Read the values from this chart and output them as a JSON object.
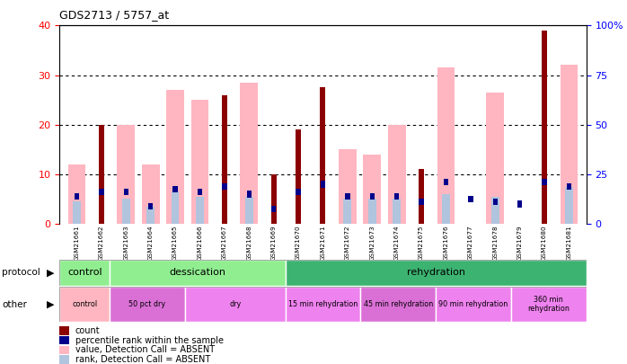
{
  "title": "GDS2713 / 5757_at",
  "samples": [
    "GSM21661",
    "GSM21662",
    "GSM21663",
    "GSM21664",
    "GSM21665",
    "GSM21666",
    "GSM21667",
    "GSM21668",
    "GSM21669",
    "GSM21670",
    "GSM21671",
    "GSM21672",
    "GSM21673",
    "GSM21674",
    "GSM21675",
    "GSM21676",
    "GSM21677",
    "GSM21678",
    "GSM21679",
    "GSM21680",
    "GSM21681"
  ],
  "count_values": [
    0,
    20,
    0,
    0,
    0,
    0,
    26,
    0,
    10,
    19,
    27.5,
    0,
    0,
    0,
    11,
    0,
    0,
    0,
    0,
    39,
    0
  ],
  "rank_values": [
    5.5,
    6.5,
    6.5,
    3.5,
    7.0,
    6.5,
    7.5,
    6.0,
    3.0,
    6.5,
    8.0,
    5.5,
    5.5,
    5.5,
    4.5,
    8.5,
    5.0,
    4.5,
    4.0,
    8.5,
    7.5
  ],
  "value_absent": [
    12,
    0,
    20,
    12,
    27,
    25,
    0,
    28.5,
    0,
    0,
    0,
    15,
    14,
    20,
    0,
    31.5,
    0,
    26.5,
    0,
    0,
    32
  ],
  "rank_absent": [
    4.5,
    0,
    5.0,
    3.5,
    6.5,
    5.5,
    0,
    5.5,
    0,
    0,
    0,
    5.0,
    5.0,
    5.0,
    0,
    6.0,
    0,
    5.5,
    0,
    0,
    7.5
  ],
  "color_count": "#8B0000",
  "color_rank": "#00008B",
  "color_value_absent": "#FFB6C1",
  "color_rank_absent": "#B0C4DE",
  "yticks_left": [
    0,
    10,
    20,
    30,
    40
  ],
  "yticks_right": [
    0,
    25,
    50,
    75,
    100
  ],
  "ylim_left": [
    0,
    40
  ],
  "ylim_right": [
    0,
    100
  ],
  "protocol_sections": [
    {
      "label": "control",
      "start": 0,
      "end": 2,
      "color": "#90EE90"
    },
    {
      "label": "dessication",
      "start": 2,
      "end": 9,
      "color": "#90EE90"
    },
    {
      "label": "rehydration",
      "start": 9,
      "end": 21,
      "color": "#3CB371"
    }
  ],
  "other_sections": [
    {
      "label": "control",
      "start": 0,
      "end": 2,
      "color": "#FFB6C1"
    },
    {
      "label": "50 pct dry",
      "start": 2,
      "end": 5,
      "color": "#DA70D6"
    },
    {
      "label": "dry",
      "start": 5,
      "end": 9,
      "color": "#EE82EE"
    },
    {
      "label": "15 min rehydration",
      "start": 9,
      "end": 12,
      "color": "#EE82EE"
    },
    {
      "label": "45 min rehydration",
      "start": 12,
      "end": 15,
      "color": "#DA70D6"
    },
    {
      "label": "90 min rehydration",
      "start": 15,
      "end": 18,
      "color": "#EE82EE"
    },
    {
      "label": "360 min\nrehydration",
      "start": 18,
      "end": 21,
      "color": "#EE82EE"
    }
  ],
  "legend_items": [
    {
      "color": "#8B0000",
      "label": "count"
    },
    {
      "color": "#00008B",
      "label": "percentile rank within the sample"
    },
    {
      "color": "#FFB6C1",
      "label": "value, Detection Call = ABSENT"
    },
    {
      "color": "#B0C4DE",
      "label": "rank, Detection Call = ABSENT"
    }
  ]
}
